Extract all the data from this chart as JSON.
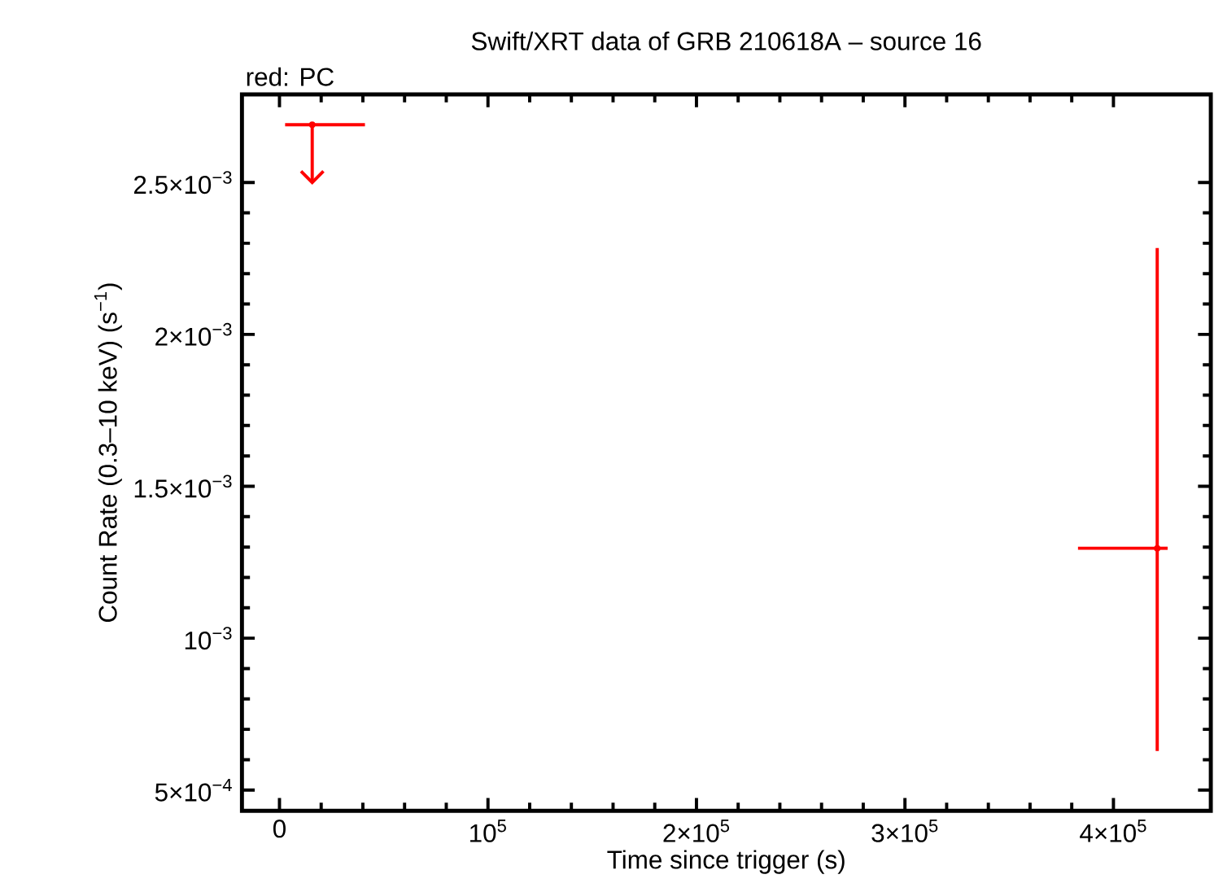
{
  "chart_data": {
    "type": "scatter",
    "title": "Swift/XRT data of GRB 210618A – source 16",
    "annotations": [
      "red: PC"
    ],
    "xlabel": "Time since trigger (s)",
    "ylabel": "Count Rate (0.3–10 keV) (s$^{−1}$)",
    "series": [
      {
        "color": "#ff0000",
        "x": [
          15700
        ],
        "values": [
          0.00269
        ],
        "errors": [
          [
            0.0025,
            0.00269
          ]
        ],
        "xerrors": [
          [
            2700,
            41000
          ]
        ]
      },
      {
        "color": "#ff0000",
        "x": [
          421000
        ],
        "values": [
          0.001296
        ],
        "errors": [
          [
            0.000629,
            0.002284
          ]
        ],
        "xerrors": [
          [
            383000,
            426000
          ]
        ]
      }
    ],
    "xlim": [
      -18000,
      446700
    ],
    "ylim": [
      0.000432,
      0.00279
    ],
    "xticks": [
      0,
      {
        "value": 100000,
        "label": "10$^{5}$"
      },
      {
        "value": 200000,
        "label": "2×10$^{5}$"
      },
      {
        "value": 300000,
        "label": "3×10$^{5}$"
      },
      {
        "value": 400000,
        "label": "4×10$^{5}$"
      }
    ],
    "yticks": [
      {
        "value": 0.0005,
        "label": "5×10$^{−4}$"
      },
      {
        "value": 0.001,
        "label": "10$^{−3}$"
      },
      {
        "value": 0.0015,
        "label": "1.5×10$^{−3}$"
      },
      {
        "value": 0.002,
        "label": "2×10$^{−3}$"
      },
      {
        "value": 0.0025,
        "label": "2.5×10$^{−3}$"
      }
    ],
    "grid": false
  }
}
